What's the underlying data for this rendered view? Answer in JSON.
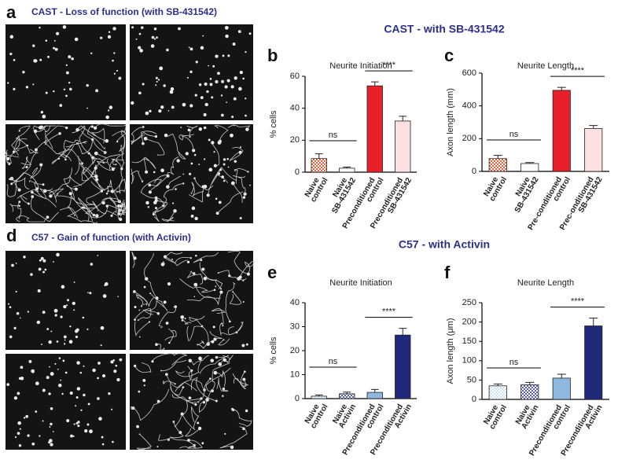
{
  "figure": {
    "panels": [
      {
        "letter": "a",
        "title": "CAST -  Loss of function (with SB-431542)"
      },
      {
        "letter": "d",
        "title": "C57 - Gain of function (with Activin)"
      }
    ],
    "headings": [
      "CAST - with SB-431542",
      "C57 - with Activin"
    ]
  },
  "chart_data": [
    {
      "type": "bar",
      "letter": "b",
      "title": "Neurite Initiation",
      "ylabel": "% cells",
      "categories": [
        [
          "Naive",
          "control"
        ],
        [
          "Naive",
          "SB-431542"
        ],
        [
          "Preconditioned",
          "control"
        ],
        [
          "Preconditioned",
          "SB-431542"
        ]
      ],
      "values": [
        8.5,
        2.5,
        54,
        32
      ],
      "errors": [
        3,
        0.7,
        2.5,
        3
      ],
      "colors": [
        "#e8603c",
        "#ffffff",
        "#e8202a",
        "#fde0e0"
      ],
      "patterns": [
        true,
        false,
        false,
        false
      ],
      "ylim": [
        0,
        60
      ],
      "yticks": [
        0,
        20,
        40,
        60
      ],
      "annotations": [
        "ns",
        "****"
      ]
    },
    {
      "type": "bar",
      "letter": "c",
      "title": "Neurite Length",
      "ylabel": "Axon length (mm)",
      "categories": [
        [
          "Naive",
          "control"
        ],
        [
          "Naive",
          "SB-431542"
        ],
        [
          "Pre-conditioned",
          "control"
        ],
        [
          "Prec-onditioned",
          "SB-431542"
        ]
      ],
      "values": [
        78,
        48,
        495,
        262
      ],
      "errors": [
        20,
        6,
        18,
        18
      ],
      "colors": [
        "#e8603c",
        "#ffffff",
        "#e8202a",
        "#fde0e0"
      ],
      "patterns": [
        true,
        false,
        false,
        false
      ],
      "ylim": [
        0,
        600
      ],
      "yticks": [
        0,
        200,
        400,
        600
      ],
      "annotations": [
        "ns",
        "****"
      ]
    },
    {
      "type": "bar",
      "letter": "e",
      "title": "Neurite Initiation",
      "ylabel": "% cells",
      "categories": [
        [
          "Naive",
          "control"
        ],
        [
          "Naive",
          "Activin"
        ],
        [
          "Preconditioned",
          "control"
        ],
        [
          "Preconditioned",
          "Activin"
        ]
      ],
      "values": [
        1,
        2,
        2.6,
        26.5
      ],
      "errors": [
        0.5,
        0.7,
        1.2,
        2.8
      ],
      "colors": [
        "#cce4f5",
        "#5a5fb0",
        "#8fb8e0",
        "#1f2a7a"
      ],
      "patterns": [
        true,
        true,
        false,
        false
      ],
      "ylim": [
        0,
        40
      ],
      "yticks": [
        0,
        10,
        20,
        30,
        40
      ],
      "annotations": [
        "ns",
        "****"
      ]
    },
    {
      "type": "bar",
      "letter": "f",
      "title": "Neurite Length",
      "ylabel": "Axon length (μm)",
      "categories": [
        [
          "Naive",
          "control"
        ],
        [
          "Naive",
          "Activin"
        ],
        [
          "Preconditioned",
          "control"
        ],
        [
          "Preconditioned",
          "Activin"
        ]
      ],
      "values": [
        35,
        38,
        55,
        190
      ],
      "errors": [
        5,
        6,
        10,
        20
      ],
      "colors": [
        "#cce4f5",
        "#5a5fb0",
        "#8fb8e0",
        "#1f2a7a"
      ],
      "patterns": [
        true,
        true,
        false,
        false
      ],
      "ylim": [
        0,
        250
      ],
      "yticks": [
        0,
        50,
        100,
        150,
        200,
        250
      ],
      "annotations": [
        "ns",
        "****"
      ]
    }
  ]
}
